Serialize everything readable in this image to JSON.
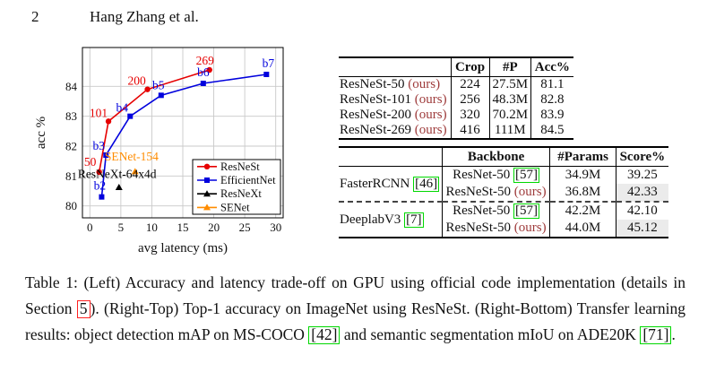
{
  "page": {
    "page_number": "2",
    "running_header": "Hang Zhang et al."
  },
  "colors": {
    "resnest_red": "#e60000",
    "efficientnet_blue": "#0000dd",
    "resnext_black": "#000000",
    "senet_orange": "#ff8c00",
    "ours_text": "#9e3b3b",
    "citation_box_green": "#00d800",
    "section_box_red": "#ff2020",
    "row_shade": "#ebebeb",
    "grid": "#c9c9c9"
  },
  "chart_data": {
    "type": "line",
    "xlabel": "avg latency (ms)",
    "ylabel": "acc %",
    "xlim": [
      -1.2,
      31.2
    ],
    "ylim": [
      79.6,
      85.3
    ],
    "xticks": [
      0,
      5,
      10,
      15,
      20,
      25,
      30
    ],
    "yticks": [
      80,
      81,
      82,
      83,
      84
    ],
    "grid": true,
    "legend_position": "lower right",
    "series": [
      {
        "name": "ResNeSt",
        "color": "#e60000",
        "marker": "circle",
        "points": [
          {
            "x": 1.5,
            "y": 81.13,
            "label": "50",
            "dx": -10,
            "dy": -7
          },
          {
            "x": 3.0,
            "y": 82.83,
            "label": "101",
            "dx": -11,
            "dy": -5
          },
          {
            "x": 9.3,
            "y": 83.9,
            "label": "200",
            "dx": -12,
            "dy": -5
          },
          {
            "x": 19.3,
            "y": 84.55,
            "label": "269",
            "dx": -5,
            "dy": -6
          }
        ]
      },
      {
        "name": "EfficientNet",
        "color": "#0000dd",
        "marker": "square",
        "points": [
          {
            "x": 1.9,
            "y": 80.3,
            "label": "b2",
            "dx": -2,
            "dy": -8
          },
          {
            "x": 2.6,
            "y": 81.7,
            "label": "b3",
            "dx": -8,
            "dy": -6
          },
          {
            "x": 6.5,
            "y": 83.0,
            "label": "b4",
            "dx": -9,
            "dy": -5
          },
          {
            "x": 11.5,
            "y": 83.7,
            "label": "b5",
            "dx": -3,
            "dy": -7
          },
          {
            "x": 18.3,
            "y": 84.1,
            "label": "b6",
            "dx": 0,
            "dy": -8
          },
          {
            "x": 28.5,
            "y": 84.4,
            "label": "b7",
            "dx": 2,
            "dy": -8
          }
        ]
      },
      {
        "name": "ResNeXt",
        "color": "#000000",
        "marker": "triangle",
        "points": [
          {
            "x": 4.7,
            "y": 80.62,
            "label": "",
            "dx": 0,
            "dy": 0
          }
        ]
      },
      {
        "name": "SENet",
        "color": "#ff8c00",
        "marker": "triangle",
        "points": [
          {
            "x": 7.3,
            "y": 81.15,
            "label": "",
            "dx": 0,
            "dy": 0
          }
        ]
      }
    ],
    "annotations": [
      {
        "text": "ResNeXt-64x4d",
        "text_x": -1.95,
        "text_y": 80.93,
        "color": "#000000",
        "anchor": "start"
      },
      {
        "text": "SENet-154",
        "text_x": 2.4,
        "text_y": 81.52,
        "color": "#ff8c00",
        "anchor": "start"
      }
    ],
    "legend": [
      {
        "label": "ResNeSt",
        "color": "#e60000",
        "marker": "circle"
      },
      {
        "label": "EfficientNet",
        "color": "#0000dd",
        "marker": "square"
      },
      {
        "label": "ResNeXt",
        "color": "#000000",
        "marker": "triangle"
      },
      {
        "label": "SENet",
        "color": "#ff8c00",
        "marker": "triangle"
      }
    ]
  },
  "table_top": {
    "columns": [
      "",
      "Crop",
      "#P",
      "Acc%"
    ],
    "rows": [
      {
        "model": "ResNeSt-50",
        "ours": "(ours)",
        "crop": "224",
        "params": "27.5M",
        "acc": "81.1"
      },
      {
        "model": "ResNeSt-101",
        "ours": "(ours)",
        "crop": "256",
        "params": "48.3M",
        "acc": "82.8"
      },
      {
        "model": "ResNeSt-200",
        "ours": "(ours)",
        "crop": "320",
        "params": "70.2M",
        "acc": "83.9"
      },
      {
        "model": "ResNeSt-269",
        "ours": "(ours)",
        "crop": "416",
        "params": "111M",
        "acc": "84.5"
      }
    ]
  },
  "table_bottom": {
    "columns": [
      "",
      "Backbone",
      "#Params",
      "Score%"
    ],
    "groups": [
      {
        "method": "FasterRCNN",
        "method_cite": "[46]",
        "rows": [
          {
            "backbone": "ResNet-50",
            "backbone_cite": "[57]",
            "backbone_ours": "",
            "params": "34.9M",
            "score": "39.25",
            "shaded": false
          },
          {
            "backbone": "ResNeSt-50",
            "backbone_cite": "",
            "backbone_ours": "(ours)",
            "params": "36.8M",
            "score": "42.33",
            "shaded": true
          }
        ]
      },
      {
        "method": "DeeplabV3",
        "method_cite": "[7]",
        "rows": [
          {
            "backbone": "ResNet-50",
            "backbone_cite": "[57]",
            "backbone_ours": "",
            "params": "42.2M",
            "score": "42.10",
            "shaded": false
          },
          {
            "backbone": "ResNeSt-50",
            "backbone_cite": "",
            "backbone_ours": "(ours)",
            "params": "44.0M",
            "score": "45.12",
            "shaded": true
          }
        ]
      }
    ]
  },
  "caption": {
    "segments": [
      {
        "text": "Table 1: (Left) Accuracy and latency trade-off on GPU using official code implementation (details in Section ",
        "box": null
      },
      {
        "text": "5",
        "box": "red"
      },
      {
        "text": "). (Right-Top) Top-1 accuracy on ImageNet using ResNeSt. (Right-Bottom) Transfer learning results: object detection mAP on MS-COCO ",
        "box": null
      },
      {
        "text": "[42]",
        "box": "green"
      },
      {
        "text": " and semantic segmentation mIoU on ADE20K ",
        "box": null
      },
      {
        "text": "[71]",
        "box": "green"
      },
      {
        "text": ".",
        "box": null
      }
    ]
  }
}
